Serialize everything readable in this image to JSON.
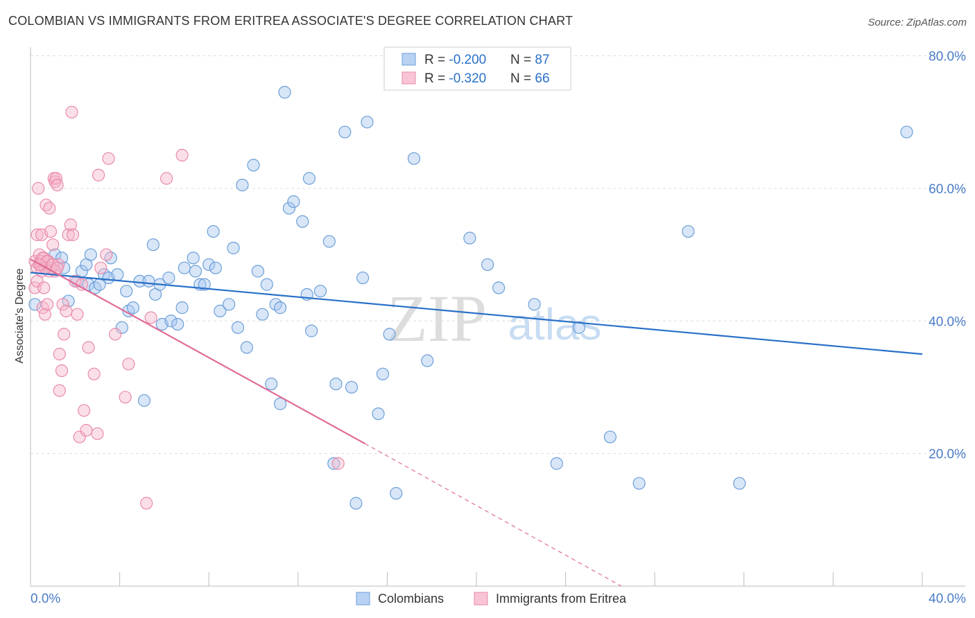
{
  "title": "COLOMBIAN VS IMMIGRANTS FROM ERITREA ASSOCIATE'S DEGREE CORRELATION CHART",
  "source": "Source: ZipAtlas.com",
  "watermark": {
    "zip": "ZIP",
    "atlas": "atlas"
  },
  "colors": {
    "blue_fill": "#a8c8f0",
    "blue_stroke": "#6b9fd8",
    "blue_line": "#2870c8",
    "pink_fill": "#f6b8cc",
    "pink_stroke": "#e88aaa",
    "pink_line": "#e06b96",
    "tick_label": "#4a7cc8",
    "grid": "#dddddd"
  },
  "legend_top": {
    "rows": [
      {
        "r_label": "R = ",
        "r_value": "-0.200",
        "n_label": "N = ",
        "n_value": "87"
      },
      {
        "r_label": "R = ",
        "r_value": "-0.320",
        "n_label": "N = ",
        "n_value": "66"
      }
    ]
  },
  "chart_data": {
    "type": "scatter",
    "title": "COLOMBIAN VS IMMIGRANTS FROM ERITREA ASSOCIATE'S DEGREE CORRELATION CHART",
    "xlabel": "",
    "ylabel": "Associate's Degree",
    "xlim": [
      0,
      40
    ],
    "ylim": [
      0,
      80
    ],
    "x_tick_labels": [
      "0.0%",
      "40.0%"
    ],
    "y_ticks": [
      20,
      40,
      60,
      80
    ],
    "y_tick_labels": [
      "20.0%",
      "40.0%",
      "60.0%",
      "80.0%"
    ],
    "grid": "horizontal dashed",
    "legend_bottom": [
      "Colombians",
      "Immigrants from Eritrea"
    ],
    "series": [
      {
        "name": "Colombians",
        "R": -0.2,
        "N": 87,
        "trend": {
          "x": [
            0,
            40
          ],
          "y": [
            47.3,
            35.0
          ]
        },
        "points": [
          [
            0.2,
            42.5
          ],
          [
            0.9,
            48
          ],
          [
            1.1,
            50
          ],
          [
            1.4,
            49.5
          ],
          [
            1.5,
            48
          ],
          [
            1.7,
            43
          ],
          [
            2.1,
            46
          ],
          [
            2.3,
            47.5
          ],
          [
            2.5,
            48.5
          ],
          [
            2.6,
            45.5
          ],
          [
            2.7,
            50
          ],
          [
            2.9,
            45
          ],
          [
            3.1,
            45.5
          ],
          [
            3.3,
            47
          ],
          [
            3.5,
            46.5
          ],
          [
            3.6,
            49.5
          ],
          [
            3.9,
            47
          ],
          [
            4.1,
            39
          ],
          [
            4.3,
            44.5
          ],
          [
            4.4,
            41.5
          ],
          [
            4.6,
            42
          ],
          [
            4.9,
            46
          ],
          [
            5.1,
            28
          ],
          [
            5.3,
            46
          ],
          [
            5.5,
            51.5
          ],
          [
            5.6,
            44
          ],
          [
            5.8,
            45.5
          ],
          [
            5.9,
            39.5
          ],
          [
            6.2,
            46.5
          ],
          [
            6.3,
            40
          ],
          [
            6.6,
            39.5
          ],
          [
            6.8,
            42
          ],
          [
            6.9,
            48
          ],
          [
            7.3,
            49.5
          ],
          [
            7.4,
            47.5
          ],
          [
            7.6,
            45.5
          ],
          [
            7.8,
            45.5
          ],
          [
            8.0,
            48.5
          ],
          [
            8.2,
            53.5
          ],
          [
            8.3,
            48
          ],
          [
            8.5,
            41.5
          ],
          [
            8.9,
            42.5
          ],
          [
            9.1,
            51
          ],
          [
            9.3,
            39
          ],
          [
            9.5,
            60.5
          ],
          [
            9.7,
            36
          ],
          [
            10.0,
            63.5
          ],
          [
            10.2,
            47.5
          ],
          [
            10.6,
            45.5
          ],
          [
            10.8,
            30.5
          ],
          [
            11.0,
            42.5
          ],
          [
            11.2,
            42
          ],
          [
            11.2,
            27.5
          ],
          [
            11.4,
            74.5
          ],
          [
            11.6,
            57
          ],
          [
            11.8,
            58
          ],
          [
            12.2,
            55
          ],
          [
            12.4,
            44
          ],
          [
            12.6,
            38.5
          ],
          [
            12.5,
            61.5
          ],
          [
            13.0,
            44.5
          ],
          [
            13.4,
            52
          ],
          [
            13.6,
            18.5
          ],
          [
            13.7,
            30.5
          ],
          [
            14.1,
            68.5
          ],
          [
            14.4,
            30
          ],
          [
            14.6,
            12.5
          ],
          [
            14.9,
            46.5
          ],
          [
            15.1,
            70
          ],
          [
            15.6,
            26
          ],
          [
            15.8,
            32
          ],
          [
            16.1,
            38
          ],
          [
            16.4,
            14
          ],
          [
            17.2,
            64.5
          ],
          [
            17.8,
            34
          ],
          [
            19.7,
            52.5
          ],
          [
            20.5,
            48.5
          ],
          [
            22.6,
            42.5
          ],
          [
            23.6,
            18.5
          ],
          [
            24.6,
            39
          ],
          [
            26.0,
            22.5
          ],
          [
            27.3,
            15.5
          ],
          [
            29.5,
            53.5
          ],
          [
            31.8,
            15.5
          ],
          [
            39.3,
            68.5
          ],
          [
            21.0,
            45
          ],
          [
            10.4,
            41
          ]
        ]
      },
      {
        "name": "Immigrants from Eritrea",
        "R": -0.32,
        "N": 66,
        "trend": {
          "x": [
            0,
            15.0
          ],
          "y": [
            49.3,
            21.5
          ]
        },
        "trend_ext": {
          "x": [
            15.0,
            26.5
          ],
          "y": [
            21.5,
            0
          ]
        },
        "points": [
          [
            0.2,
            49
          ],
          [
            0.2,
            45
          ],
          [
            0.3,
            48
          ],
          [
            0.3,
            46
          ],
          [
            0.3,
            53
          ],
          [
            0.35,
            60
          ],
          [
            0.4,
            50
          ],
          [
            0.45,
            48.5
          ],
          [
            0.5,
            47.5
          ],
          [
            0.5,
            53
          ],
          [
            0.55,
            42
          ],
          [
            0.6,
            45
          ],
          [
            0.6,
            49.5
          ],
          [
            0.65,
            41
          ],
          [
            0.7,
            57.5
          ],
          [
            0.75,
            42.5
          ],
          [
            0.8,
            49
          ],
          [
            0.85,
            57
          ],
          [
            0.9,
            53.5
          ],
          [
            0.95,
            48
          ],
          [
            1.0,
            51.5
          ],
          [
            1.05,
            61.5
          ],
          [
            1.1,
            61
          ],
          [
            1.15,
            61.5
          ],
          [
            1.2,
            60.5
          ],
          [
            1.25,
            48.5
          ],
          [
            1.3,
            35
          ],
          [
            1.3,
            29.5
          ],
          [
            1.4,
            32.5
          ],
          [
            1.45,
            42.5
          ],
          [
            1.5,
            38
          ],
          [
            1.6,
            41.5
          ],
          [
            1.7,
            53
          ],
          [
            1.8,
            54.5
          ],
          [
            1.85,
            71.5
          ],
          [
            2.0,
            46
          ],
          [
            2.1,
            41
          ],
          [
            2.2,
            22.5
          ],
          [
            2.3,
            45.5
          ],
          [
            2.4,
            26.5
          ],
          [
            2.5,
            23.5
          ],
          [
            2.6,
            36
          ],
          [
            2.85,
            32
          ],
          [
            3.0,
            23
          ],
          [
            3.05,
            62
          ],
          [
            3.15,
            48
          ],
          [
            3.4,
            50
          ],
          [
            3.5,
            64.5
          ],
          [
            3.8,
            38
          ],
          [
            4.25,
            28.5
          ],
          [
            4.4,
            33.5
          ],
          [
            5.2,
            12.5
          ],
          [
            5.4,
            40.5
          ],
          [
            6.1,
            61.5
          ],
          [
            6.8,
            65
          ],
          [
            13.8,
            18.5
          ],
          [
            0.45,
            49
          ],
          [
            0.55,
            49.5
          ],
          [
            0.65,
            48
          ],
          [
            0.75,
            49
          ],
          [
            0.85,
            47.5
          ],
          [
            1.0,
            48.5
          ],
          [
            1.1,
            47.5
          ],
          [
            1.2,
            48
          ],
          [
            0.4,
            48.5
          ],
          [
            1.9,
            53
          ]
        ]
      }
    ]
  }
}
